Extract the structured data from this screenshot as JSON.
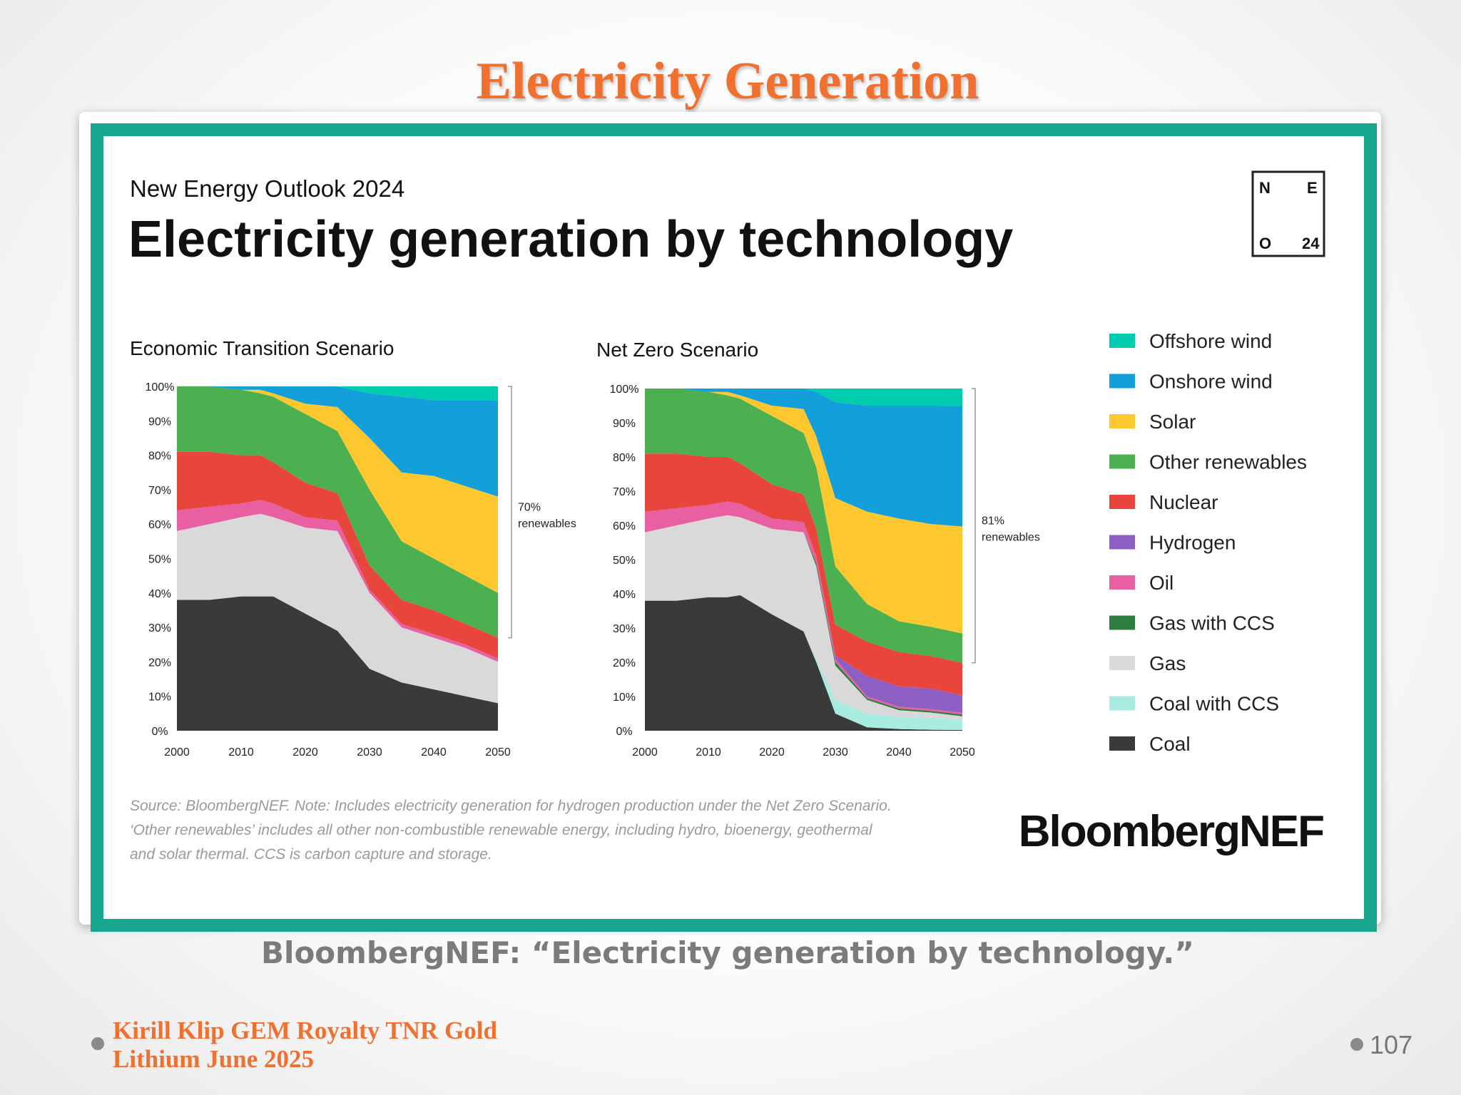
{
  "slide": {
    "title": "Electricity Generation",
    "caption": "BloombergNEF: “Electricity generation by technology.”",
    "footer_line1": "Kirill Klip GEM Royalty TNR Gold",
    "footer_line2": "Lithium June 2025",
    "page_number": "107"
  },
  "figure": {
    "supertitle": "New Energy Outlook 2024",
    "title": "Electricity generation by technology",
    "neo_badge": [
      "N",
      "E",
      "O",
      "24"
    ],
    "source_line1": "Source: BloombergNEF. Note: Includes electricity generation for hydrogen production under the Net Zero Scenario.",
    "source_line2": "‘Other renewables’ includes all other non-combustible renewable energy, including hydro, bioenergy, geothermal",
    "source_line3": "and solar thermal. CCS is carbon capture and storage.",
    "logo_text": "BloombergNEF"
  },
  "chart_data": [
    {
      "type": "area",
      "title": "Economic Transition Scenario",
      "x": [
        2000,
        2005,
        2010,
        2013,
        2015,
        2020,
        2025,
        2030,
        2035,
        2040,
        2045,
        2050
      ],
      "xticks": [
        "2000",
        "2010",
        "2020",
        "2030",
        "2040",
        "2050"
      ],
      "yticks": [
        "0%",
        "10%",
        "20%",
        "30%",
        "40%",
        "50%",
        "60%",
        "70%",
        "80%",
        "90%",
        "100%"
      ],
      "ylim": [
        0,
        100
      ],
      "stacked": "percent",
      "annotation": {
        "value": "70%",
        "label": "renewables"
      },
      "series": [
        {
          "name": "Coal",
          "color": "#3a3a3a",
          "values": [
            38,
            38,
            39,
            39,
            39,
            34,
            29,
            18,
            14,
            12,
            10,
            8
          ]
        },
        {
          "name": "Coal with CCS",
          "color": "#a8ebe0",
          "values": [
            0,
            0,
            0,
            0,
            0,
            0,
            0,
            0,
            0,
            0,
            0,
            0
          ]
        },
        {
          "name": "Gas",
          "color": "#d9d9d9",
          "values": [
            20,
            22,
            23,
            24,
            23,
            25,
            29,
            22,
            16,
            15,
            14,
            12
          ]
        },
        {
          "name": "Gas with CCS",
          "color": "#2e7d3e",
          "values": [
            0,
            0,
            0,
            0,
            0,
            0,
            0,
            0,
            0,
            0,
            0,
            0
          ]
        },
        {
          "name": "Oil",
          "color": "#e85fa2",
          "values": [
            6,
            5,
            4,
            4,
            4,
            3,
            3,
            1,
            1,
            1,
            1,
            1
          ]
        },
        {
          "name": "Hydrogen",
          "color": "#8e5fc2",
          "values": [
            0,
            0,
            0,
            0,
            0,
            0,
            0,
            0,
            0,
            0,
            0,
            0
          ]
        },
        {
          "name": "Nuclear",
          "color": "#e8453c",
          "values": [
            17,
            16,
            14,
            13,
            12,
            10,
            8,
            7,
            7,
            7,
            6,
            6
          ]
        },
        {
          "name": "Other renewables",
          "color": "#4caf50",
          "values": [
            19,
            19,
            19,
            18,
            19,
            20,
            18,
            22,
            17,
            15,
            14,
            13
          ]
        },
        {
          "name": "Solar",
          "color": "#fdc82f",
          "values": [
            0,
            0,
            0,
            1,
            1,
            3,
            7,
            15,
            20,
            24,
            26,
            28
          ]
        },
        {
          "name": "Onshore wind",
          "color": "#129fda",
          "values": [
            0,
            0,
            1,
            1,
            2,
            5,
            6,
            13,
            22,
            22,
            25,
            28
          ]
        },
        {
          "name": "Offshore wind",
          "color": "#00cdb0",
          "values": [
            0,
            0,
            0,
            0,
            0,
            0,
            0,
            2,
            3,
            4,
            4,
            4
          ]
        }
      ]
    },
    {
      "type": "area",
      "title": "Net Zero Scenario",
      "x": [
        2000,
        2005,
        2010,
        2013,
        2015,
        2020,
        2025,
        2027,
        2030,
        2035,
        2040,
        2045,
        2050
      ],
      "xticks": [
        "2000",
        "2010",
        "2020",
        "2030",
        "2040",
        "2050"
      ],
      "yticks": [
        "0%",
        "10%",
        "20%",
        "30%",
        "40%",
        "50%",
        "60%",
        "70%",
        "80%",
        "90%",
        "100%"
      ],
      "ylim": [
        0,
        100
      ],
      "stacked": "percent",
      "annotation": {
        "value": "81%",
        "label": "renewables"
      },
      "series": [
        {
          "name": "Coal",
          "color": "#3a3a3a",
          "values": [
            38,
            38,
            39,
            39,
            40,
            34,
            29,
            20,
            5,
            1,
            0.5,
            0.3,
            0.2
          ]
        },
        {
          "name": "Coal with CCS",
          "color": "#a8ebe0",
          "values": [
            0,
            0,
            0,
            0,
            0,
            0,
            0,
            1,
            4,
            4,
            3.5,
            3.5,
            3
          ]
        },
        {
          "name": "Gas",
          "color": "#d9d9d9",
          "values": [
            20,
            22,
            23,
            24,
            23,
            25,
            29,
            27,
            10,
            4,
            2,
            1.5,
            1
          ]
        },
        {
          "name": "Gas with CCS",
          "color": "#2e7d3e",
          "values": [
            0,
            0,
            0,
            0,
            0,
            0,
            0,
            1,
            1,
            0.5,
            0.5,
            0.5,
            0.5
          ]
        },
        {
          "name": "Oil",
          "color": "#e85fa2",
          "values": [
            6,
            5,
            4,
            4,
            4,
            3,
            3,
            2,
            1,
            0.5,
            0.5,
            0.5,
            0.5
          ]
        },
        {
          "name": "Hydrogen",
          "color": "#8e5fc2",
          "values": [
            0,
            0,
            0,
            0,
            0,
            0,
            0,
            0,
            1,
            6,
            6,
            6,
            5
          ]
        },
        {
          "name": "Nuclear",
          "color": "#e8453c",
          "values": [
            17,
            16,
            14,
            13,
            12,
            10,
            8,
            8,
            9,
            10,
            10,
            9.5,
            9.5
          ]
        },
        {
          "name": "Other renewables",
          "color": "#4caf50",
          "values": [
            19,
            19,
            19,
            18,
            19,
            20,
            18,
            18,
            17,
            11,
            9,
            8.5,
            8.5
          ]
        },
        {
          "name": "Solar",
          "color": "#fdc82f",
          "values": [
            0,
            0,
            0,
            1,
            1,
            3,
            7,
            9,
            20,
            27,
            30,
            30,
            31
          ]
        },
        {
          "name": "Onshore wind",
          "color": "#129fda",
          "values": [
            0,
            0,
            1,
            1,
            2,
            5,
            6,
            13,
            28,
            31,
            33,
            34.5,
            35
          ]
        },
        {
          "name": "Offshore wind",
          "color": "#00cdb0",
          "values": [
            0,
            0,
            0,
            0,
            0,
            0,
            0,
            1,
            4,
            5,
            5,
            5,
            5
          ]
        }
      ]
    }
  ],
  "legend": [
    {
      "label": "Offshore wind",
      "color": "#00cdb0"
    },
    {
      "label": "Onshore wind",
      "color": "#129fda"
    },
    {
      "label": "Solar",
      "color": "#fdc82f"
    },
    {
      "label": "Other renewables",
      "color": "#4caf50"
    },
    {
      "label": "Nuclear",
      "color": "#e8453c"
    },
    {
      "label": "Hydrogen",
      "color": "#8e5fc2"
    },
    {
      "label": "Oil",
      "color": "#e85fa2"
    },
    {
      "label": "Gas with CCS",
      "color": "#2e7d3e"
    },
    {
      "label": "Gas",
      "color": "#d9d9d9"
    },
    {
      "label": "Coal with CCS",
      "color": "#a8ebe0"
    },
    {
      "label": "Coal",
      "color": "#3a3a3a"
    }
  ]
}
